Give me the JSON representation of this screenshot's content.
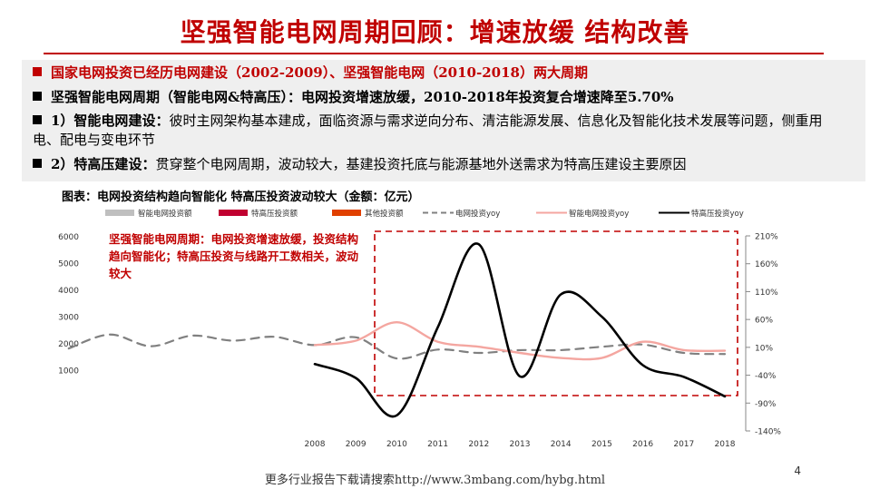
{
  "page": {
    "title": "坚强智能电网周期回顾：增速放缓 结构改善",
    "figure_caption": "图表：电网投资结构趋向智能化 特高压投资波动较大（金额：亿元）",
    "footer": "更多行业报告下载请搜索http://www.3mbang.com/hybg.html",
    "page_number": "4"
  },
  "bullets": [
    {
      "text": "国家电网投资已经历电网建设（2002-2009）、坚强智能电网（2010-2018）两大周期",
      "style": "red"
    },
    {
      "text": "坚强智能电网周期（智能电网&特高压）：电网投资增速放缓，2010-2018年投资复合增速降至5.70%",
      "style": "bold"
    },
    {
      "label": "1）智能电网建设：",
      "text": "彼时主网架构基本建成，面临资源与需求逆向分布、清洁能源发展、信息化及智能化技术发展等问题，侧重用电、配电与变电环节",
      "style": "label"
    },
    {
      "label": "2）特高压建设：",
      "text": "贯穿整个电网周期，波动较大，基建投资托底与能源基地外送需求为特高压建设主要原因",
      "style": "label"
    }
  ],
  "colors": {
    "accent": "#c00000",
    "bullet_bg": "#efefef"
  },
  "chart_data": {
    "type": "line",
    "annotation": "坚强智能电网周期：电网投资增速放缓，投资结构趋向智能化；特高压投资与线路开工数相关，波动较大",
    "categories": [
      "2008",
      "2009",
      "2010",
      "2011",
      "2012",
      "2013",
      "2014",
      "2015",
      "2016",
      "2017",
      "2018"
    ],
    "left_axis": {
      "ticks": [
        1000,
        2000,
        3000,
        4000,
        5000,
        6000
      ],
      "range": [
        0,
        6000
      ]
    },
    "right_axis": {
      "ticks": [
        "210%",
        "160%",
        "110%",
        "60%",
        "10%",
        "-40%",
        "-90%",
        "-140%"
      ],
      "range": [
        -140,
        210
      ]
    },
    "legend": [
      {
        "name": "智能电网投资额",
        "kind": "bar",
        "color": "#bfbfbf"
      },
      {
        "name": "特高压投资额",
        "kind": "bar",
        "color": "#c00030"
      },
      {
        "name": "其他投资额",
        "kind": "bar",
        "color": "#e04000"
      },
      {
        "name": "电网投资yoy",
        "kind": "dashed",
        "color": "#808080"
      },
      {
        "name": "智能电网投资yoy",
        "kind": "line",
        "color": "#f4a6a0"
      },
      {
        "name": "特高压投资yoy",
        "kind": "line",
        "color": "#000000"
      }
    ],
    "series": [
      {
        "name": "电网投资yoy",
        "style": "dashed",
        "color": "#808080",
        "x": [
          2002,
          2003,
          2004,
          2005,
          2006,
          2007,
          2008,
          2009,
          2010,
          2011,
          2012,
          2013,
          2014,
          2015,
          2016,
          2017,
          2018
        ],
        "values": [
          8,
          33,
          12,
          31,
          22,
          29,
          14,
          28,
          -10,
          6,
          0,
          5,
          5,
          11,
          15,
          0,
          -2
        ]
      },
      {
        "name": "智能电网投资yoy",
        "style": "solid",
        "color": "#f4a6a0",
        "x": [
          2008,
          2009,
          2010,
          2011,
          2012,
          2013,
          2014,
          2015,
          2016,
          2017,
          2018
        ],
        "values": [
          14,
          22,
          55,
          20,
          11,
          0,
          -9,
          -9,
          20,
          5,
          4
        ]
      },
      {
        "name": "特高压投资yoy",
        "style": "solid",
        "color": "#000000",
        "x": [
          2008,
          2009,
          2010,
          2011,
          2012,
          2013,
          2014,
          2015,
          2016,
          2017,
          2018
        ],
        "values": [
          -20,
          -45,
          -112,
          46,
          195,
          -42,
          105,
          65,
          -22,
          -43,
          -78
        ]
      }
    ]
  }
}
